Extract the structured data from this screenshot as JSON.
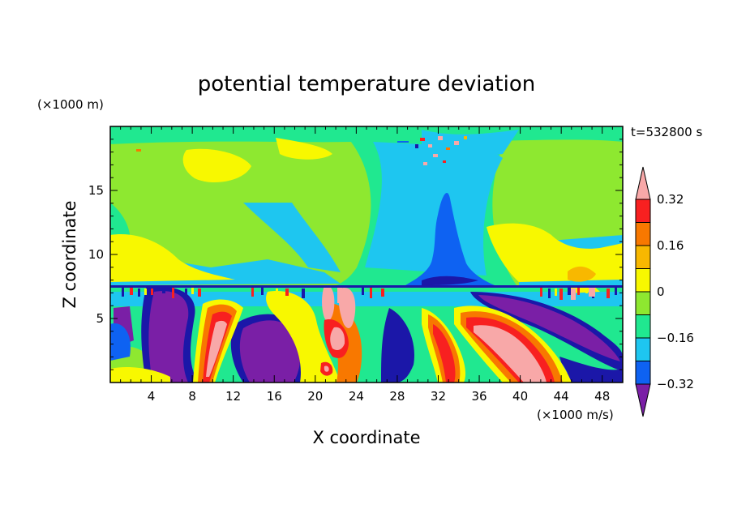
{
  "chart_data": {
    "type": "heatmap",
    "title": "potential temperature deviation",
    "xlabel": "X coordinate",
    "ylabel": "Z coordinate",
    "x_unit": "(×1000 m/s)",
    "y_unit": "(×1000 m)",
    "time_label": "t=532800 s",
    "xlim": [
      0,
      50
    ],
    "ylim": [
      0,
      20
    ],
    "x_ticks": [
      4,
      8,
      12,
      16,
      20,
      24,
      28,
      32,
      36,
      40,
      44,
      48
    ],
    "x_tick_labels": [
      "4",
      "8",
      "12",
      "16",
      "20",
      "24",
      "28",
      "32",
      "36",
      "40",
      "44",
      "48"
    ],
    "y_ticks": [
      5,
      10,
      15
    ],
    "y_tick_labels": [
      "5",
      "10",
      "15"
    ],
    "colorbar": {
      "levels": [
        -0.4,
        -0.32,
        -0.24,
        -0.16,
        -0.08,
        0,
        0.08,
        0.16,
        0.24,
        0.32,
        0.4
      ],
      "colors": [
        "#7a1fa6",
        "#1b17a8",
        "#0e62f2",
        "#1ec6f0",
        "#20e890",
        "#8ee830",
        "#f8f800",
        "#f8b800",
        "#f87800",
        "#f82020",
        "#f8a8a8"
      ],
      "tick_values": [
        0.32,
        0.16,
        0,
        -0.16,
        -0.32
      ],
      "tick_labels": [
        "0.32",
        "0.16",
        "0",
        "−0.16",
        "−0.32"
      ]
    }
  }
}
